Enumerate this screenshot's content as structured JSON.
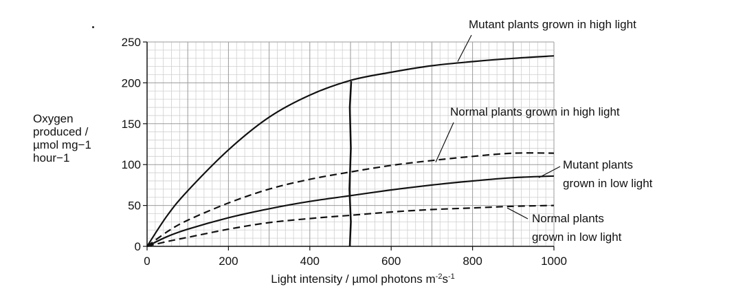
{
  "chart_data": {
    "type": "line",
    "title": "",
    "xlabel": "Light intensity / µmol photons m",
    "xlabel_sup1": "-2",
    "xlabel_mid": "s",
    "xlabel_sup2": "-1",
    "ylabel_lines": [
      "Oxygen",
      "produced /",
      "µmol mg−1",
      "hour−1"
    ],
    "xlim": [
      0,
      1000
    ],
    "ylim": [
      0,
      250
    ],
    "x_ticks": [
      0,
      200,
      400,
      600,
      800,
      1000
    ],
    "y_ticks": [
      0,
      50,
      100,
      150,
      200,
      250
    ],
    "grid": true,
    "vertical_marker_x": 500,
    "series": [
      {
        "name": "Mutant plants grown in high light",
        "line_style": "solid",
        "label_lines": [
          "Mutant plants grown in high light"
        ],
        "x": [
          0,
          50,
          100,
          200,
          300,
          400,
          500,
          600,
          700,
          800,
          900,
          1000
        ],
        "y": [
          0,
          38,
          68,
          118,
          158,
          185,
          203,
          213,
          221,
          226,
          230,
          233
        ]
      },
      {
        "name": "Normal plants grown in high light",
        "line_style": "dashed",
        "label_lines": [
          "Normal plants grown in high light"
        ],
        "x": [
          0,
          50,
          100,
          200,
          300,
          400,
          500,
          600,
          700,
          800,
          900,
          1000
        ],
        "y": [
          0,
          18,
          32,
          53,
          70,
          82,
          91,
          99,
          105,
          110,
          114,
          114
        ]
      },
      {
        "name": "Mutant plants grown in low light",
        "line_style": "solid",
        "label_lines": [
          "Mutant plants",
          "grown in low light"
        ],
        "x": [
          0,
          50,
          100,
          200,
          300,
          400,
          500,
          600,
          700,
          800,
          900,
          1000
        ],
        "y": [
          0,
          12,
          21,
          35,
          46,
          55,
          62,
          69,
          75,
          80,
          84,
          86
        ]
      },
      {
        "name": "Normal plants grown in low light",
        "line_style": "dashed",
        "label_lines": [
          "Normal plants",
          "grown in low light"
        ],
        "x": [
          0,
          50,
          100,
          200,
          300,
          400,
          500,
          600,
          700,
          800,
          900,
          1000
        ],
        "y": [
          0,
          6,
          11,
          21,
          29,
          34,
          38,
          42,
          45,
          47,
          49,
          50
        ]
      }
    ]
  }
}
